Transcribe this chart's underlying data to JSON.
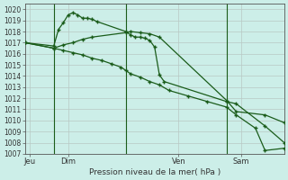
{
  "bg_color": "#cceee8",
  "grid_color": "#b8c8c4",
  "line_color": "#1a5c1a",
  "xlabel": "Pression niveau de la mer( hPa )",
  "ylim": [
    1007,
    1020.5
  ],
  "yticks": [
    1007,
    1008,
    1009,
    1010,
    1011,
    1012,
    1013,
    1014,
    1015,
    1016,
    1017,
    1018,
    1019,
    1020
  ],
  "xlim": [
    0,
    27
  ],
  "xtick_positions": [
    0.5,
    4.5,
    16,
    22.5
  ],
  "xtick_labels": [
    "Jeu",
    "Dim",
    "Ven",
    "Sam"
  ],
  "vlines": [
    3,
    10.5,
    21
  ],
  "series1_x": [
    0,
    3,
    3.5,
    4,
    4.5,
    5,
    5.5,
    6,
    6.5,
    7,
    7.5,
    10.5,
    11,
    11.5,
    12,
    12.5,
    13,
    13.5,
    14,
    14.5,
    21,
    22,
    25,
    27
  ],
  "series1_y": [
    1017,
    1016.7,
    1018.2,
    1018.8,
    1019.5,
    1019.7,
    1019.5,
    1019.2,
    1019.2,
    1019.1,
    1018.9,
    1018.0,
    1017.7,
    1017.5,
    1017.5,
    1017.4,
    1017.2,
    1016.6,
    1014.1,
    1013.5,
    1011.7,
    1011.5,
    1009.5,
    1008.0
  ],
  "series2_x": [
    0,
    3,
    4,
    5,
    6,
    7,
    10.5,
    11,
    12,
    13,
    14,
    21,
    22,
    25,
    27
  ],
  "series2_y": [
    1017,
    1016.5,
    1016.8,
    1017.0,
    1017.3,
    1017.5,
    1017.9,
    1018.0,
    1017.9,
    1017.8,
    1017.5,
    1011.8,
    1010.8,
    1010.5,
    1009.8
  ],
  "series3_x": [
    0,
    3,
    4,
    5,
    6,
    7,
    8,
    9,
    10,
    10.5,
    11,
    12,
    13,
    14,
    15,
    17,
    19,
    21,
    22,
    24,
    25,
    27
  ],
  "series3_y": [
    1017,
    1016.5,
    1016.3,
    1016.1,
    1015.9,
    1015.6,
    1015.4,
    1015.1,
    1014.8,
    1014.5,
    1014.2,
    1013.9,
    1013.5,
    1013.2,
    1012.7,
    1012.2,
    1011.7,
    1011.2,
    1010.5,
    1009.3,
    1007.3,
    1007.5
  ]
}
